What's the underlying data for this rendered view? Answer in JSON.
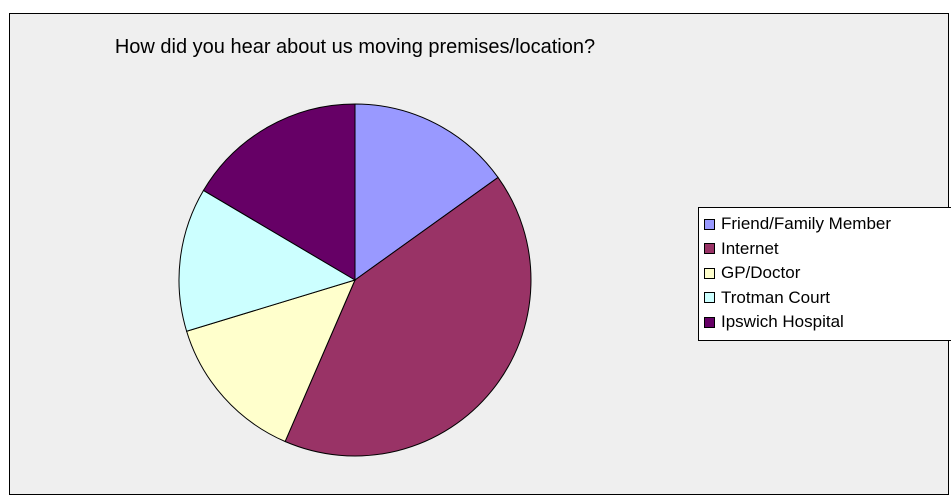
{
  "chart_data": {
    "type": "pie",
    "title": "How did you hear about us moving premises/location?",
    "start_angle_deg": 0,
    "direction": "clockwise",
    "legend_position": "right",
    "categories": [
      "Friend/Family Member",
      "Internet",
      "GP/Doctor",
      "Trotman Court",
      "Ipswich Hospital"
    ],
    "values": [
      15.1,
      41.4,
      13.8,
      13.2,
      16.5
    ],
    "colors": [
      "#9999ff",
      "#993366",
      "#ffffcc",
      "#ccffff",
      "#660066"
    ]
  }
}
